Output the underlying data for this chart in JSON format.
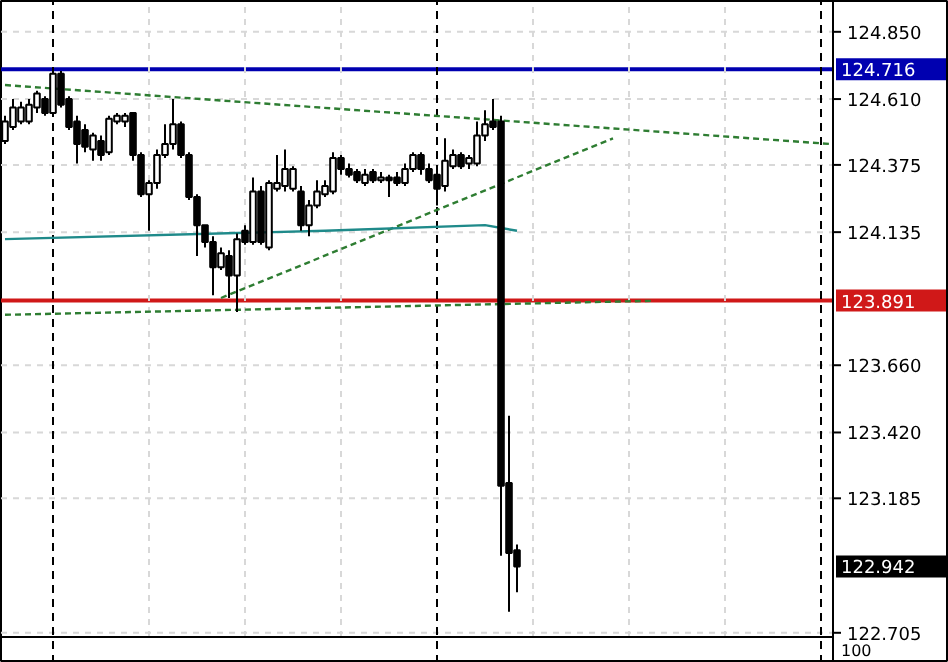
{
  "chart_data": {
    "type": "candlestick",
    "categories": [
      null,
      null,
      null,
      null,
      null,
      null,
      null,
      null,
      null,
      null,
      null,
      null,
      null,
      null,
      null,
      null,
      null,
      null,
      null,
      null,
      null,
      null,
      null,
      null,
      null,
      null,
      null,
      null,
      null,
      null,
      null,
      null,
      null,
      null,
      null,
      null,
      null,
      null,
      null,
      null,
      null,
      null,
      null,
      null,
      null,
      null,
      null,
      null,
      null,
      null,
      null,
      null,
      null,
      null,
      null,
      null,
      null,
      null,
      null,
      null,
      null,
      null,
      null,
      null,
      null,
      null,
      null,
      null,
      null,
      null,
      null,
      null,
      null,
      null,
      null,
      null,
      null,
      null,
      null,
      null,
      null,
      null,
      null,
      null,
      null,
      null,
      null,
      null,
      null,
      null,
      null,
      null,
      null,
      null,
      null,
      null,
      null,
      null,
      null,
      null,
      null,
      null,
      null,
      null
    ],
    "ohlc": [
      [
        124.46,
        124.55,
        124.45,
        124.53
      ],
      [
        124.51,
        124.61,
        124.5,
        124.58
      ],
      [
        124.53,
        124.6,
        124.52,
        124.58
      ],
      [
        124.53,
        124.61,
        124.52,
        124.59
      ],
      [
        124.58,
        124.64,
        124.56,
        124.63
      ],
      [
        124.61,
        124.62,
        124.55,
        124.56
      ],
      [
        124.56,
        124.71,
        124.55,
        124.7
      ],
      [
        124.7,
        124.71,
        124.58,
        124.59
      ],
      [
        124.61,
        124.62,
        124.5,
        124.51
      ],
      [
        124.53,
        124.55,
        124.38,
        124.45
      ],
      [
        124.5,
        124.52,
        124.42,
        124.44
      ],
      [
        124.43,
        124.49,
        124.39,
        124.48
      ],
      [
        124.46,
        124.48,
        124.39,
        124.41
      ],
      [
        124.42,
        124.55,
        124.41,
        124.54
      ],
      [
        124.53,
        124.56,
        124.52,
        124.55
      ],
      [
        124.53,
        124.56,
        124.51,
        124.55
      ],
      [
        124.56,
        124.56,
        124.39,
        124.41
      ],
      [
        124.41,
        124.42,
        124.26,
        124.27
      ],
      [
        124.27,
        124.32,
        124.14,
        124.31
      ],
      [
        124.31,
        124.43,
        124.29,
        124.41
      ],
      [
        124.41,
        124.52,
        124.4,
        124.45
      ],
      [
        124.45,
        124.61,
        124.43,
        124.52
      ],
      [
        124.52,
        124.53,
        124.4,
        124.41
      ],
      [
        124.41,
        124.42,
        124.25,
        124.26
      ],
      [
        124.26,
        124.27,
        124.05,
        124.16
      ],
      [
        124.16,
        124.16,
        124.08,
        124.1
      ],
      [
        124.1,
        124.12,
        123.91,
        124.01
      ],
      [
        124.01,
        124.08,
        124.0,
        124.06
      ],
      [
        124.05,
        124.07,
        123.9,
        123.98
      ],
      [
        123.98,
        124.13,
        123.85,
        124.11
      ],
      [
        124.14,
        124.16,
        124.09,
        124.1
      ],
      [
        124.1,
        124.33,
        124.09,
        124.28
      ],
      [
        124.28,
        124.3,
        124.09,
        124.1
      ],
      [
        124.08,
        124.32,
        124.07,
        124.31
      ],
      [
        124.29,
        124.41,
        124.28,
        124.31
      ],
      [
        124.3,
        124.43,
        124.28,
        124.36
      ],
      [
        124.29,
        124.37,
        124.28,
        124.36
      ],
      [
        124.28,
        124.3,
        124.14,
        124.16
      ],
      [
        124.16,
        124.25,
        124.12,
        124.23
      ],
      [
        124.23,
        124.32,
        124.22,
        124.28
      ],
      [
        124.27,
        124.32,
        124.26,
        124.3
      ],
      [
        124.28,
        124.42,
        124.27,
        124.4
      ],
      [
        124.4,
        124.41,
        124.34,
        124.36
      ],
      [
        124.36,
        124.38,
        124.33,
        124.34
      ],
      [
        124.35,
        124.36,
        124.31,
        124.32
      ],
      [
        124.31,
        124.36,
        124.3,
        124.34
      ],
      [
        124.35,
        124.36,
        124.31,
        124.32
      ],
      [
        124.32,
        124.35,
        124.31,
        124.33
      ],
      [
        124.33,
        124.34,
        124.26,
        124.32
      ],
      [
        124.33,
        124.35,
        124.3,
        124.31
      ],
      [
        124.31,
        124.38,
        124.3,
        124.36
      ],
      [
        124.36,
        124.42,
        124.35,
        124.41
      ],
      [
        124.41,
        124.42,
        124.34,
        124.36
      ],
      [
        124.36,
        124.38,
        124.31,
        124.32
      ],
      [
        124.34,
        124.36,
        124.23,
        124.29
      ],
      [
        124.3,
        124.47,
        124.28,
        124.39
      ],
      [
        124.37,
        124.43,
        124.36,
        124.41
      ],
      [
        124.41,
        124.42,
        124.36,
        124.37
      ],
      [
        124.38,
        124.41,
        124.36,
        124.4
      ],
      [
        124.38,
        124.53,
        124.37,
        124.48
      ],
      [
        124.48,
        124.57,
        124.46,
        124.52
      ],
      [
        124.53,
        124.61,
        124.5,
        124.51
      ],
      [
        124.53,
        124.55,
        122.98,
        123.23
      ],
      [
        123.24,
        123.48,
        122.78,
        122.99
      ],
      [
        123.0,
        123.02,
        122.85,
        122.942
      ],
      null,
      null,
      null,
      null,
      null,
      null,
      null,
      null,
      null,
      null,
      null,
      null,
      null,
      null,
      null,
      null,
      null,
      null,
      null,
      null,
      null,
      null,
      null,
      null,
      null,
      null,
      null,
      null,
      null,
      null,
      null,
      null,
      null,
      null,
      null,
      null,
      null,
      null,
      null
    ],
    "ylim": [
      122.69,
      124.96
    ],
    "yticks": [
      {
        "value": 124.85,
        "label": "124.850"
      },
      {
        "value": 124.61,
        "label": "124.610"
      },
      {
        "value": 124.375,
        "label": "124.375"
      },
      {
        "value": 124.135,
        "label": "124.135"
      },
      {
        "value": 123.66,
        "label": "123.660"
      },
      {
        "value": 123.42,
        "label": "123.420"
      },
      {
        "value": 123.185,
        "label": "123.185"
      },
      {
        "value": 122.705,
        "label": "122.705"
      }
    ],
    "grid": true,
    "series": [
      {
        "type": "line",
        "values": [
          124.66,
          null,
          null,
          null,
          null,
          null,
          null,
          null,
          null,
          null,
          null,
          null,
          null,
          null,
          null,
          null,
          null,
          null,
          null,
          null,
          null,
          null,
          null,
          null,
          null,
          null,
          null,
          null,
          null,
          null,
          null,
          null,
          null,
          null,
          null,
          null,
          null,
          null,
          null,
          null,
          null,
          null,
          null,
          null,
          null,
          null,
          null,
          null,
          null,
          null,
          null,
          null,
          null,
          null,
          null,
          null,
          null,
          null,
          null,
          null,
          null,
          null,
          null,
          null,
          null,
          null,
          null,
          null,
          null,
          null,
          null,
          null,
          null,
          null,
          null,
          null,
          null,
          null,
          null,
          null,
          null,
          null,
          null,
          null,
          null,
          null,
          null,
          null,
          null,
          null,
          null,
          null,
          null,
          null,
          null,
          null,
          null,
          null,
          null,
          null,
          null,
          null,
          null,
          124.45
        ],
        "color": "#2e7d32",
        "line_style": "dashed"
      },
      {
        "type": "line",
        "values": [
          null,
          null,
          null,
          null,
          null,
          null,
          null,
          null,
          null,
          null,
          null,
          null,
          null,
          null,
          null,
          null,
          null,
          null,
          null,
          null,
          null,
          null,
          null,
          null,
          null,
          null,
          null,
          123.9,
          null,
          null,
          null,
          null,
          null,
          null,
          null,
          null,
          null,
          null,
          null,
          null,
          null,
          null,
          null,
          null,
          null,
          null,
          null,
          null,
          null,
          null,
          null,
          null,
          null,
          null,
          null,
          null,
          null,
          null,
          null,
          null,
          null,
          null,
          null,
          null,
          null,
          null,
          null,
          null,
          null,
          null,
          null,
          null,
          null,
          null,
          null,
          null,
          124.47,
          null,
          null,
          null,
          null,
          null,
          null,
          null,
          null,
          null,
          null,
          null,
          null,
          null,
          null,
          null,
          null,
          null,
          null,
          null,
          null,
          null,
          null,
          null,
          null,
          null,
          null,
          null
        ],
        "color": "#2e7d32",
        "line_style": "dashed"
      },
      {
        "type": "line",
        "values": [
          123.84,
          null,
          null,
          null,
          null,
          null,
          null,
          null,
          null,
          null,
          null,
          null,
          null,
          null,
          null,
          null,
          null,
          null,
          null,
          null,
          null,
          null,
          null,
          null,
          null,
          null,
          null,
          null,
          null,
          null,
          null,
          null,
          null,
          null,
          null,
          null,
          null,
          null,
          null,
          null,
          null,
          null,
          null,
          null,
          null,
          null,
          null,
          null,
          null,
          null,
          null,
          null,
          null,
          null,
          null,
          null,
          null,
          null,
          null,
          null,
          null,
          null,
          null,
          null,
          null,
          null,
          null,
          null,
          null,
          null,
          null,
          null,
          null,
          null,
          null,
          null,
          null,
          null,
          null,
          null,
          null,
          123.89,
          null,
          null,
          null,
          null,
          null,
          null,
          null,
          null,
          null,
          null,
          null,
          null,
          null,
          null,
          null,
          null,
          null,
          null,
          null,
          null,
          null,
          null
        ],
        "color": "#2e7d32",
        "line_style": "dashed"
      },
      {
        "type": "line",
        "values": [
          124.11,
          null,
          null,
          null,
          null,
          null,
          null,
          null,
          null,
          null,
          null,
          null,
          null,
          null,
          null,
          null,
          null,
          null,
          null,
          null,
          null,
          null,
          null,
          null,
          null,
          null,
          null,
          null,
          null,
          null,
          null,
          null,
          null,
          null,
          null,
          null,
          null,
          null,
          null,
          null,
          124.14,
          null,
          null,
          null,
          null,
          null,
          null,
          null,
          null,
          null,
          null,
          null,
          null,
          null,
          null,
          null,
          null,
          null,
          null,
          null,
          124.16,
          null,
          null,
          null,
          124.14,
          null,
          null,
          null,
          null,
          null,
          null,
          null,
          null,
          null,
          null,
          null,
          null,
          null,
          null,
          null,
          null,
          null,
          null,
          null,
          null,
          null,
          null,
          null,
          null,
          null,
          null,
          null,
          null,
          null,
          null,
          null,
          null,
          null,
          null,
          null,
          null,
          null,
          null,
          null
        ],
        "color": "#1f8a8a",
        "line_style": "solid"
      }
    ],
    "ref_lines": [
      {
        "axis": "y",
        "value": 124.716,
        "label": "124.716",
        "color": "#0000b0"
      },
      {
        "axis": "y",
        "value": 123.891,
        "label": "123.891",
        "color": "#d01818"
      }
    ],
    "annotations": [
      "122.942",
      "100"
    ]
  }
}
